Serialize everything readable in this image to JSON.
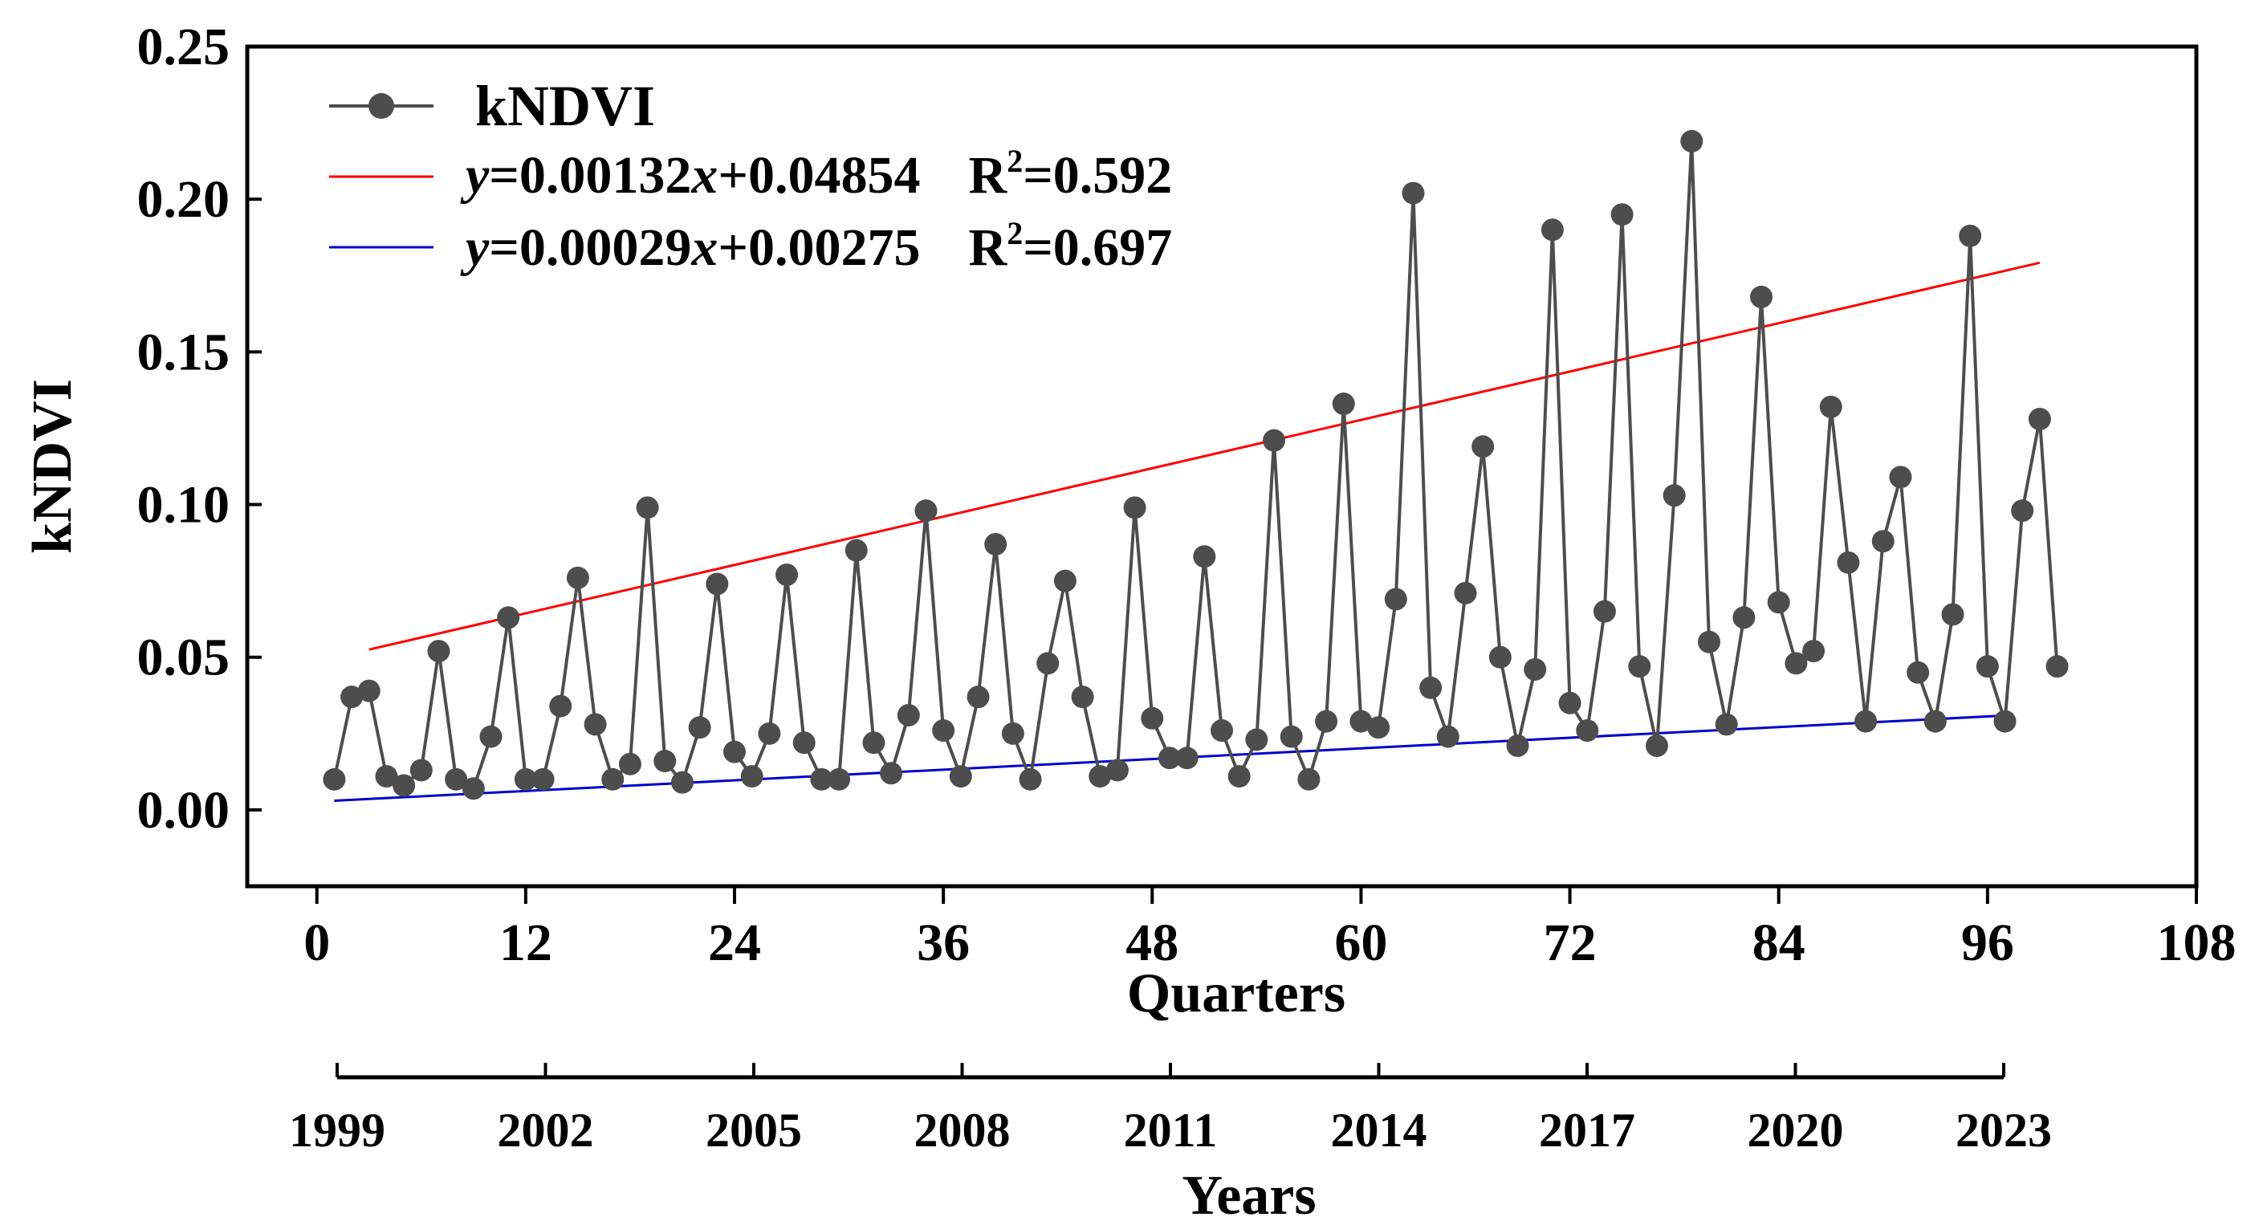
{
  "chart_data": {
    "type": "line",
    "xlabel": "Quarters",
    "ylabel": "kNDVI",
    "xlim": [
      -4,
      108
    ],
    "ylim": [
      -0.025,
      0.25
    ],
    "x_ticks": [
      0,
      12,
      24,
      36,
      48,
      60,
      72,
      84,
      96,
      108
    ],
    "y_ticks": [
      0.0,
      0.05,
      0.1,
      0.15,
      0.2,
      0.25
    ],
    "y_tick_labels": [
      "0.00",
      "0.05",
      "0.10",
      "0.15",
      "0.20",
      "0.25"
    ],
    "legend_position": "top-left",
    "series": [
      {
        "name": "kNDVI",
        "style": "line-with-markers",
        "color": "#4d4d4d",
        "x": [
          1,
          2,
          3,
          4,
          5,
          6,
          7,
          8,
          9,
          10,
          11,
          12,
          13,
          14,
          15,
          16,
          17,
          18,
          19,
          20,
          21,
          22,
          23,
          24,
          25,
          26,
          27,
          28,
          29,
          30,
          31,
          32,
          33,
          34,
          35,
          36,
          37,
          38,
          39,
          40,
          41,
          42,
          43,
          44,
          45,
          46,
          47,
          48,
          49,
          50,
          51,
          52,
          53,
          54,
          55,
          56,
          57,
          58,
          59,
          60,
          61,
          62,
          63,
          64,
          65,
          66,
          67,
          68,
          69,
          70,
          71,
          72,
          73,
          74,
          75,
          76,
          77,
          78,
          79,
          80,
          81,
          82,
          83,
          84,
          85,
          86,
          87,
          88,
          89,
          90,
          91,
          92,
          93,
          94,
          95,
          96,
          97,
          98,
          99,
          100
        ],
        "values": [
          0.01,
          0.037,
          0.039,
          0.011,
          0.008,
          0.013,
          0.052,
          0.01,
          0.007,
          0.024,
          0.063,
          0.01,
          0.01,
          0.034,
          0.076,
          0.028,
          0.01,
          0.015,
          0.099,
          0.016,
          0.009,
          0.027,
          0.074,
          0.019,
          0.011,
          0.025,
          0.077,
          0.022,
          0.01,
          0.01,
          0.085,
          0.022,
          0.012,
          0.031,
          0.098,
          0.026,
          0.011,
          0.037,
          0.087,
          0.025,
          0.01,
          0.048,
          0.075,
          0.037,
          0.011,
          0.013,
          0.099,
          0.03,
          0.017,
          0.017,
          0.083,
          0.026,
          0.011,
          0.023,
          0.121,
          0.024,
          0.01,
          0.029,
          0.133,
          0.029,
          0.027,
          0.069,
          0.202,
          0.04,
          0.024,
          0.071,
          0.119,
          0.05,
          0.021,
          0.046,
          0.19,
          0.035,
          0.026,
          0.065,
          0.195,
          0.047,
          0.021,
          0.103,
          0.219,
          0.055,
          0.028,
          0.063,
          0.168,
          0.068,
          0.048,
          0.052,
          0.132,
          0.081,
          0.029,
          0.088,
          0.109,
          0.045,
          0.029,
          0.064,
          0.188,
          0.047,
          0.029,
          0.098,
          0.128,
          0.047
        ]
      },
      {
        "name": "y=0.00132x+0.04854   R2=0.592",
        "style": "line",
        "color": "#ff0000",
        "x": [
          3,
          99
        ],
        "values": [
          0.0525,
          0.1792
        ]
      },
      {
        "name": "y=0.00029x+0.00275   R2=0.697",
        "style": "line",
        "color": "#0000cc",
        "x": [
          1,
          97
        ],
        "values": [
          0.003,
          0.0309
        ]
      }
    ]
  },
  "legend": {
    "kndvi": "kNDVI",
    "red_eq_y": "y",
    "red_eq_mid": "=0.00132",
    "red_eq_x": "x",
    "red_eq_end": "+0.04854",
    "red_r2": "R",
    "red_r2_sup": "2",
    "red_r2_val": "=0.592",
    "blue_eq_y": "y",
    "blue_eq_mid": "=0.00029",
    "blue_eq_x": "x",
    "blue_eq_end": "+0.00275",
    "blue_r2": "R",
    "blue_r2_sup": "2",
    "blue_r2_val": "=0.697"
  },
  "years_axis": {
    "title": "Years",
    "labels": [
      "1999",
      "2002",
      "2005",
      "2008",
      "2011",
      "2014",
      "2017",
      "2020",
      "2023"
    ]
  },
  "colors": {
    "series": "#4d4d4d",
    "trend_upper": "#ff0000",
    "trend_lower": "#0000cc"
  }
}
